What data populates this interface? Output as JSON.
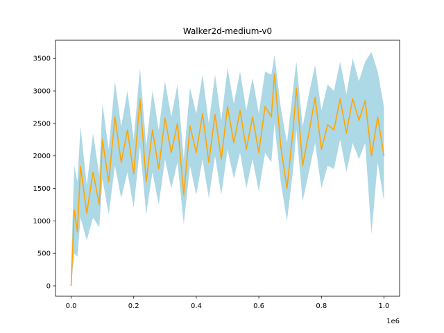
{
  "chart_data": {
    "type": "line",
    "title": "Walker2d-medium-v0",
    "xlabel": "",
    "ylabel": "",
    "x_offset_label": "1e6",
    "xlim": [
      -0.05,
      1.05
    ],
    "ylim": [
      -160,
      3780
    ],
    "x_ticks": [
      0.0,
      0.2,
      0.4,
      0.6,
      0.8,
      1.0
    ],
    "x_tick_labels": [
      "0.0",
      "0.2",
      "0.4",
      "0.6",
      "0.8",
      "1.0"
    ],
    "y_ticks": [
      0,
      500,
      1000,
      1500,
      2000,
      2500,
      3000,
      3500
    ],
    "y_tick_labels": [
      "0",
      "500",
      "1000",
      "1500",
      "2000",
      "2500",
      "3000",
      "3500"
    ],
    "grid": false,
    "colors": {
      "line": "#ffa500",
      "band": "#add8e6"
    },
    "x": [
      0.0,
      0.01,
      0.02,
      0.03,
      0.05,
      0.07,
      0.09,
      0.1,
      0.12,
      0.14,
      0.16,
      0.18,
      0.2,
      0.22,
      0.24,
      0.26,
      0.28,
      0.3,
      0.32,
      0.34,
      0.36,
      0.38,
      0.4,
      0.42,
      0.44,
      0.46,
      0.48,
      0.5,
      0.52,
      0.54,
      0.56,
      0.58,
      0.6,
      0.62,
      0.64,
      0.65,
      0.67,
      0.69,
      0.71,
      0.72,
      0.74,
      0.76,
      0.78,
      0.8,
      0.82,
      0.84,
      0.86,
      0.88,
      0.9,
      0.92,
      0.94,
      0.96,
      0.98,
      1.0
    ],
    "series": [
      {
        "values": [
          0,
          1170,
          830,
          1840,
          1120,
          1750,
          1250,
          2250,
          1600,
          2600,
          1900,
          2400,
          1720,
          2880,
          1600,
          2400,
          1800,
          2580,
          2050,
          2500,
          1400,
          2460,
          2050,
          2650,
          1900,
          2640,
          1950,
          2760,
          2200,
          2700,
          2100,
          2600,
          2050,
          2760,
          2600,
          3260,
          2150,
          1500,
          2420,
          3040,
          1850,
          2350,
          2900,
          2100,
          2480,
          2400,
          2880,
          2350,
          2880,
          2550,
          2850,
          2000,
          2600,
          2000
        ],
        "lower": [
          0,
          500,
          450,
          1050,
          700,
          1050,
          900,
          1650,
          1100,
          1850,
          1350,
          1750,
          1200,
          2150,
          1100,
          1750,
          1250,
          1950,
          1500,
          1900,
          950,
          1850,
          1400,
          1950,
          1350,
          2000,
          1400,
          2100,
          1650,
          2050,
          1500,
          1950,
          1450,
          2050,
          1900,
          2500,
          1600,
          1000,
          1800,
          2400,
          1300,
          1750,
          2200,
          1500,
          1850,
          1800,
          2250,
          1750,
          2200,
          1950,
          2200,
          800,
          1900,
          1300
        ],
        "upper": [
          300,
          1850,
          1600,
          2450,
          1550,
          2350,
          1700,
          2800,
          2100,
          3150,
          2450,
          3000,
          2250,
          3350,
          2150,
          3000,
          2400,
          3150,
          2600,
          3100,
          1950,
          3050,
          2650,
          3250,
          2500,
          3250,
          2550,
          3350,
          2800,
          3300,
          2700,
          3200,
          2650,
          3300,
          3250,
          3550,
          2750,
          2200,
          3050,
          3450,
          2450,
          2950,
          3400,
          2700,
          3100,
          3000,
          3450,
          2950,
          3500,
          3150,
          3450,
          3600,
          3300,
          2750
        ]
      }
    ]
  }
}
